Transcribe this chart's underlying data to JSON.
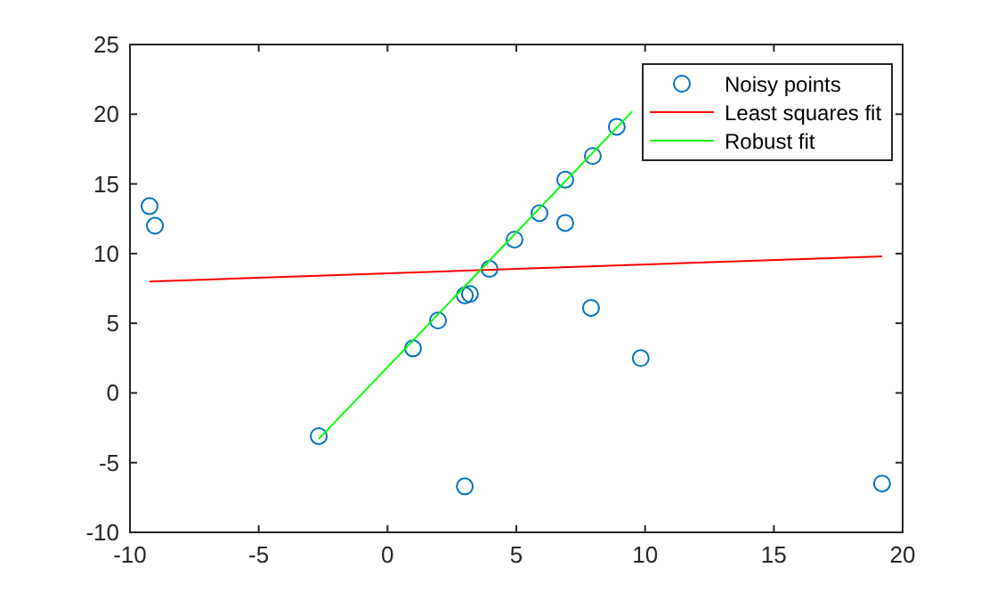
{
  "chart_data": {
    "type": "scatter",
    "xlim": [
      -10,
      20
    ],
    "ylim": [
      -10,
      25
    ],
    "xticks": [
      -10,
      -5,
      0,
      5,
      10,
      15,
      20
    ],
    "yticks": [
      -10,
      -5,
      0,
      5,
      10,
      15,
      20,
      25
    ],
    "grid": false,
    "legend": "top right",
    "series": [
      {
        "name": "Noisy points",
        "marker": "circle",
        "color": "#0072bd",
        "x": [
          -9.24,
          -9.03,
          -2.67,
          0.99,
          1.96,
          3.0,
          3.2,
          3.96,
          4.93,
          5.9,
          6.9,
          6.9,
          7.97,
          8.9,
          3.0,
          7.9,
          9.83,
          19.2
        ],
        "values": [
          13.4,
          12.0,
          -3.1,
          3.2,
          5.2,
          7.0,
          7.1,
          8.9,
          11.0,
          12.9,
          15.3,
          12.2,
          17.0,
          19.1,
          -6.7,
          6.1,
          2.5,
          -6.5
        ]
      },
      {
        "name": "Least squares fit",
        "type": "line",
        "marker": "none",
        "color": "#ff0000",
        "x": [
          -9.24,
          19.2
        ],
        "values": [
          8.0,
          9.8
        ]
      },
      {
        "name": "Robust fit",
        "type": "line",
        "marker": "none",
        "color": "#00ff00",
        "x": [
          -2.67,
          9.5
        ],
        "values": [
          -3.3,
          20.2
        ]
      }
    ]
  }
}
